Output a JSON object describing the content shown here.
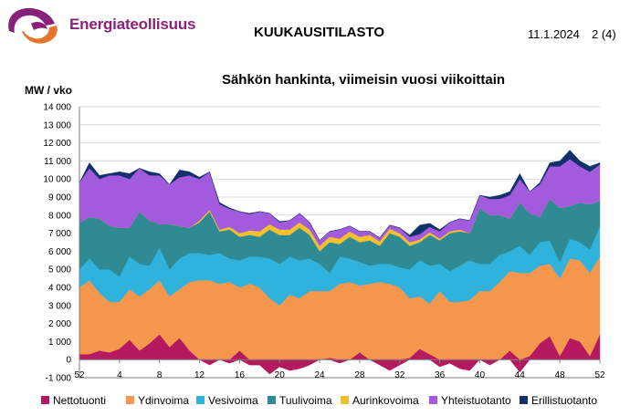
{
  "header": {
    "logo_text": "Energiateollisuus",
    "report_title": "KUUKAUSITILASTO",
    "date": "11.1.2024",
    "page": "2 (4)",
    "brand_purple": "#8a2178",
    "brand_orange": "#e8732a"
  },
  "chart_data": {
    "type": "area",
    "stacked": true,
    "title": "Sähkön hankinta, viimeisin vuosi viikoittain",
    "ylabel": "MW / vko",
    "xlabel": "",
    "ylim": [
      -1000,
      14000
    ],
    "yticks": [
      "-1 000",
      "0",
      "1 000",
      "2 000",
      "3 000",
      "4 000",
      "5 000",
      "6 000",
      "7 000",
      "8 000",
      "9 000",
      "10 000",
      "11 000",
      "12 000",
      "13 000",
      "14 000"
    ],
    "ytick_values": [
      -1000,
      0,
      1000,
      2000,
      3000,
      4000,
      5000,
      6000,
      7000,
      8000,
      9000,
      10000,
      11000,
      12000,
      13000,
      14000
    ],
    "x": [
      52,
      1,
      2,
      3,
      4,
      5,
      6,
      7,
      8,
      9,
      10,
      11,
      12,
      13,
      14,
      15,
      16,
      17,
      18,
      19,
      20,
      21,
      22,
      23,
      24,
      25,
      26,
      27,
      28,
      29,
      30,
      31,
      32,
      33,
      34,
      35,
      36,
      37,
      38,
      39,
      40,
      41,
      42,
      43,
      44,
      45,
      46,
      47,
      48,
      49,
      50,
      51,
      52
    ],
    "xticks": [
      "52",
      "4",
      "8",
      "12",
      "16",
      "20",
      "24",
      "28",
      "32",
      "36",
      "40",
      "44",
      "48",
      "52"
    ],
    "xtick_index": [
      0,
      4,
      8,
      12,
      16,
      20,
      24,
      28,
      32,
      36,
      40,
      44,
      48,
      52
    ],
    "grid": true,
    "legend_position": "bottom",
    "series": [
      {
        "name": "Nettotuonti",
        "color": "#b5195f",
        "values": [
          300,
          300,
          500,
          400,
          600,
          1100,
          500,
          900,
          1400,
          700,
          1200,
          500,
          0,
          -300,
          0,
          -200,
          500,
          -300,
          -300,
          -800,
          -400,
          -600,
          -500,
          -300,
          0,
          100,
          -200,
          0,
          400,
          0,
          -300,
          -600,
          -300,
          100,
          600,
          300,
          -400,
          -200,
          -500,
          -600,
          0,
          -300,
          0,
          500,
          -700,
          200,
          900,
          1300,
          200,
          1200,
          1000,
          200,
          1400
        ]
      },
      {
        "name": "Ydinvoima",
        "color": "#f5964d",
        "values": [
          3700,
          4100,
          3200,
          2800,
          2600,
          2800,
          3000,
          3000,
          3000,
          2800,
          2700,
          3800,
          4400,
          4400,
          4200,
          4300,
          3500,
          4200,
          4000,
          3400,
          3000,
          3600,
          3400,
          3800,
          3800,
          3700,
          4200,
          4300,
          3700,
          4200,
          4300,
          4200,
          4000,
          3300,
          2900,
          2800,
          3800,
          3200,
          3200,
          3300,
          3800,
          3800,
          4300,
          4400,
          4800,
          4600,
          4300,
          4000,
          4300,
          4400,
          4500,
          4600,
          4300
        ]
      },
      {
        "name": "Vesivoima",
        "color": "#2fb3dc",
        "values": [
          1000,
          1200,
          1300,
          1800,
          1400,
          1800,
          1800,
          1300,
          1800,
          1500,
          1700,
          1600,
          1500,
          1400,
          1700,
          1300,
          1500,
          1500,
          1700,
          2200,
          2300,
          2100,
          2100,
          1800,
          1500,
          1000,
          1500,
          1300,
          1300,
          1000,
          1000,
          1100,
          1100,
          1600,
          2000,
          2100,
          1500,
          1700,
          2000,
          2200,
          1500,
          1500,
          1500,
          1100,
          1500,
          1000,
          1300,
          1300,
          900,
          1100,
          1000,
          1300,
          1700
        ]
      },
      {
        "name": "Tuulivoima",
        "color": "#2f8a93",
        "values": [
          2600,
          2300,
          2800,
          2400,
          2700,
          1600,
          2900,
          2500,
          1300,
          2500,
          1800,
          1400,
          1700,
          2400,
          1200,
          1600,
          1300,
          1200,
          1100,
          1600,
          1600,
          1200,
          1800,
          1300,
          700,
          1700,
          700,
          1200,
          1100,
          1400,
          1000,
          1700,
          1700,
          1300,
          1000,
          1700,
          1300,
          2100,
          1900,
          1500,
          3100,
          2700,
          2200,
          1800,
          2400,
          2300,
          1400,
          2300,
          3000,
          1800,
          2200,
          2500,
          1400
        ]
      },
      {
        "name": "Aurinkovoima",
        "color": "#f2c02b",
        "values": [
          0,
          0,
          0,
          0,
          0,
          0,
          0,
          0,
          0,
          0,
          0,
          0,
          100,
          100,
          100,
          150,
          200,
          250,
          300,
          300,
          300,
          300,
          300,
          300,
          300,
          300,
          300,
          300,
          300,
          300,
          250,
          250,
          200,
          200,
          150,
          150,
          100,
          100,
          100,
          0,
          0,
          0,
          0,
          0,
          0,
          0,
          0,
          0,
          0,
          0,
          0,
          0,
          0
        ]
      },
      {
        "name": "Yhteistuotanto",
        "color": "#a35bde",
        "values": [
          2200,
          2700,
          2200,
          2800,
          2900,
          2700,
          2400,
          2500,
          2700,
          2200,
          2700,
          2900,
          2300,
          2100,
          1400,
          1000,
          1200,
          900,
          1100,
          600,
          400,
          500,
          500,
          400,
          300,
          300,
          500,
          300,
          300,
          200,
          200,
          200,
          300,
          300,
          300,
          300,
          400,
          500,
          600,
          700,
          700,
          900,
          900,
          1300,
          1300,
          1200,
          1800,
          1800,
          2300,
          2600,
          2000,
          1800,
          2000
        ]
      },
      {
        "name": "Erillistuotanto",
        "color": "#12306b",
        "values": [
          0,
          300,
          200,
          100,
          200,
          300,
          0,
          200,
          100,
          0,
          400,
          200,
          100,
          0,
          100,
          50,
          0,
          50,
          0,
          0,
          50,
          0,
          0,
          0,
          0,
          0,
          0,
          0,
          0,
          0,
          0,
          0,
          0,
          100,
          500,
          200,
          100,
          0,
          0,
          0,
          0,
          100,
          200,
          200,
          300,
          0,
          100,
          200,
          300,
          500,
          300,
          300,
          100
        ]
      }
    ]
  }
}
